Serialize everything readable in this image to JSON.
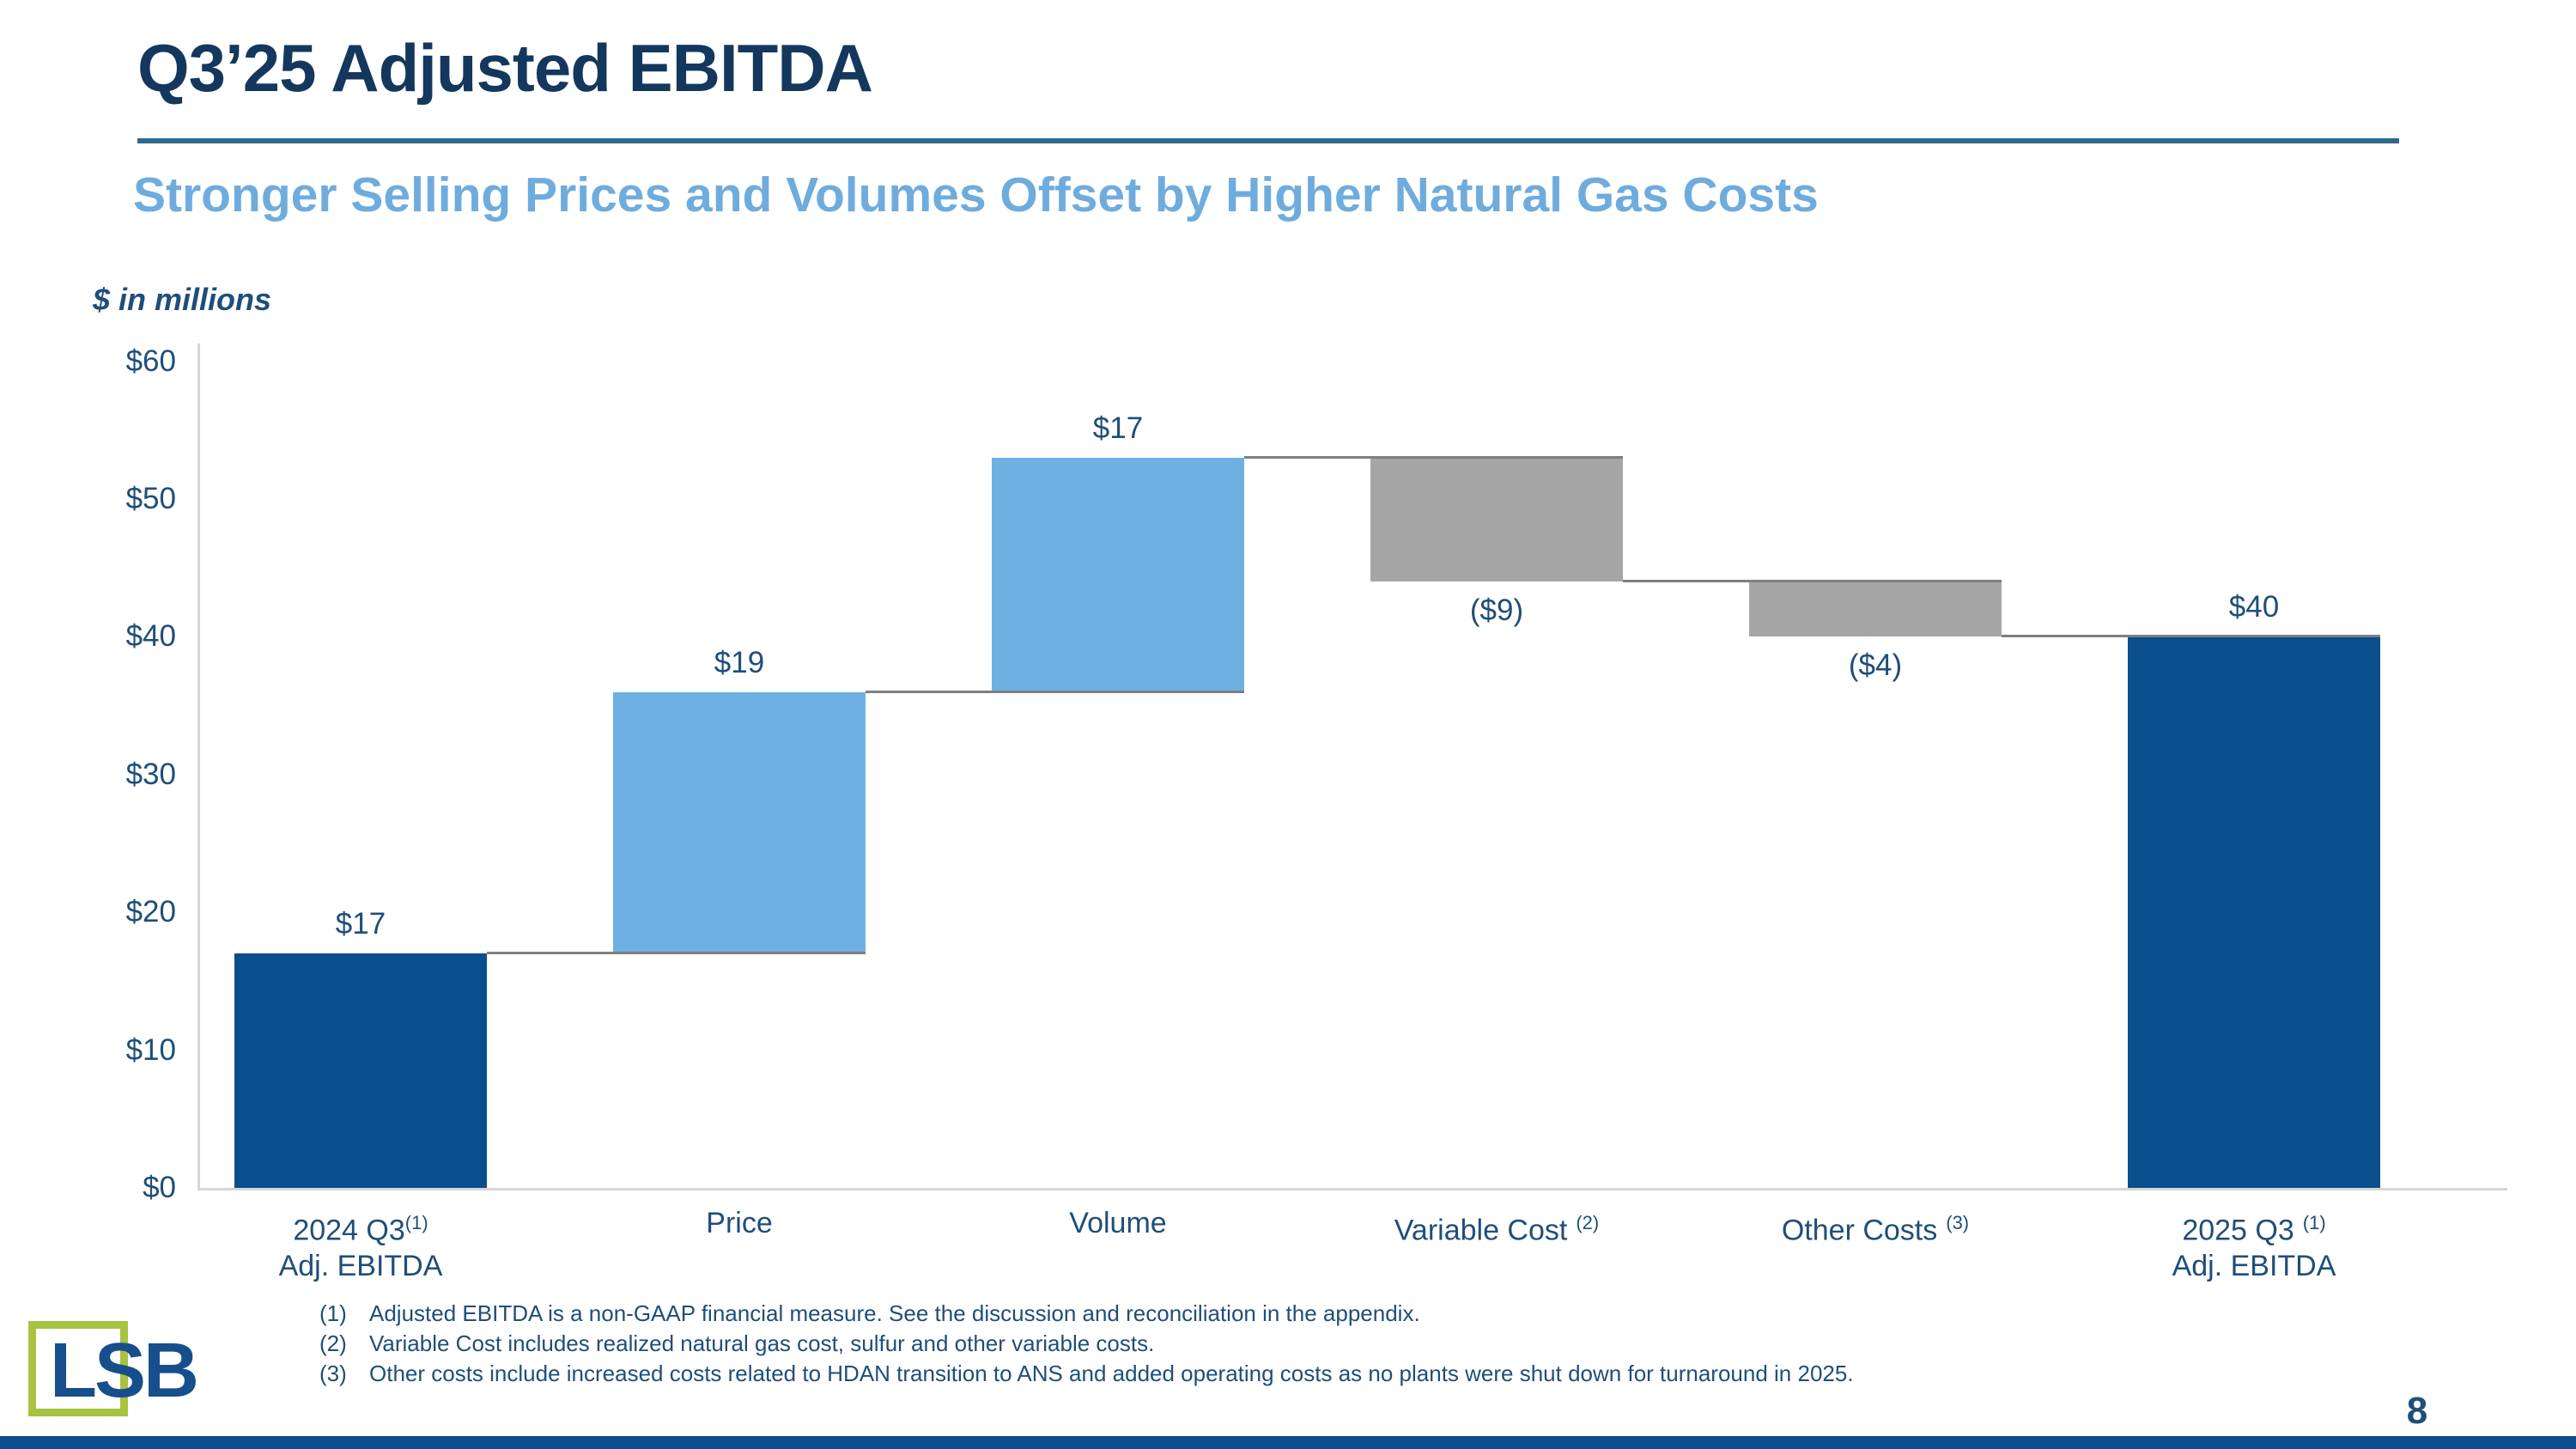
{
  "slide": {
    "title": "Q3’25 Adjusted EBITDA",
    "subtitle": "Stronger Selling Prices and Volumes Offset by Higher Natural Gas Costs",
    "page_number": "8",
    "logo_text": "LSB"
  },
  "colors": {
    "title": "#14375E",
    "subtitle": "#6FACDE",
    "text_blue": "#1F4E79",
    "bar_navy": "#084F8C",
    "bar_light_blue": "#6FB0E2",
    "bar_gray": "#A6A6A6",
    "title_rule": "#2E6A8C",
    "connector_gray": "#7F7F7F",
    "axis_gray": "#D6D6D6",
    "logo_green": "#A9C23F",
    "logo_blue": "#164F8C",
    "footer_bar": "#0D4D8C"
  },
  "chart_data": {
    "type": "waterfall-bar",
    "title": "Q3’25 Adjusted EBITDA bridge",
    "units": "$ in millions",
    "ylim": [
      0,
      60
    ],
    "grid": false,
    "legend": false,
    "y_ticks": [
      {
        "label": "$60",
        "value": 60
      },
      {
        "label": "$50",
        "value": 50
      },
      {
        "label": "$40",
        "value": 40
      },
      {
        "label": "$30",
        "value": 30
      },
      {
        "label": "$20",
        "value": 20
      },
      {
        "label": "$10",
        "value": 10
      },
      {
        "label": "$0",
        "value": 0
      }
    ],
    "categories": [
      "2024 Q3 (1) Adj. EBITDA",
      "Price",
      "Volume",
      "Variable Cost (2)",
      "Other Costs (3)",
      "2025 Q3 (1) Adj. EBITDA"
    ],
    "values": [
      17,
      19,
      17,
      -9,
      -4,
      40
    ],
    "cumulative": [
      17,
      36,
      53,
      44,
      40,
      40
    ],
    "bars": [
      {
        "category_line1": "2024 Q3",
        "sup": "(1)",
        "sup_gap": false,
        "category_line2": "Adj. EBITDA",
        "value": 17,
        "label": "$17",
        "role": "total",
        "color_key": "bar_navy",
        "label_pos": "above"
      },
      {
        "category_line1": "Price",
        "value": 19,
        "label": "$19",
        "role": "increase",
        "color_key": "bar_light_blue",
        "label_pos": "above"
      },
      {
        "category_line1": "Volume",
        "value": 17,
        "label": "$17",
        "role": "increase",
        "color_key": "bar_light_blue",
        "label_pos": "above"
      },
      {
        "category_line1": "Variable Cost",
        "sup": "(2)",
        "sup_gap": true,
        "value": -9,
        "label": "($9)",
        "role": "decrease",
        "color_key": "bar_gray",
        "label_pos": "below"
      },
      {
        "category_line1": "Other Costs",
        "sup": "(3)",
        "sup_gap": true,
        "value": -4,
        "label": "($4)",
        "role": "decrease",
        "color_key": "bar_gray",
        "label_pos": "below"
      },
      {
        "category_line1": "2025 Q3",
        "sup": "(1)",
        "sup_gap": true,
        "category_line2": "Adj. EBITDA",
        "value": 40,
        "label": "$40",
        "role": "total",
        "color_key": "bar_navy",
        "label_pos": "above"
      }
    ]
  },
  "footnotes": [
    {
      "num": "(1)",
      "text": "Adjusted EBITDA is a non-GAAP financial measure.  See the discussion and reconciliation in the appendix."
    },
    {
      "num": "(2)",
      "text": "Variable Cost includes realized natural gas cost, sulfur and other variable costs."
    },
    {
      "num": "(3)",
      "text": "Other costs include increased costs related to HDAN transition to ANS and added operating costs as no plants were shut down for turnaround in 2025."
    }
  ]
}
